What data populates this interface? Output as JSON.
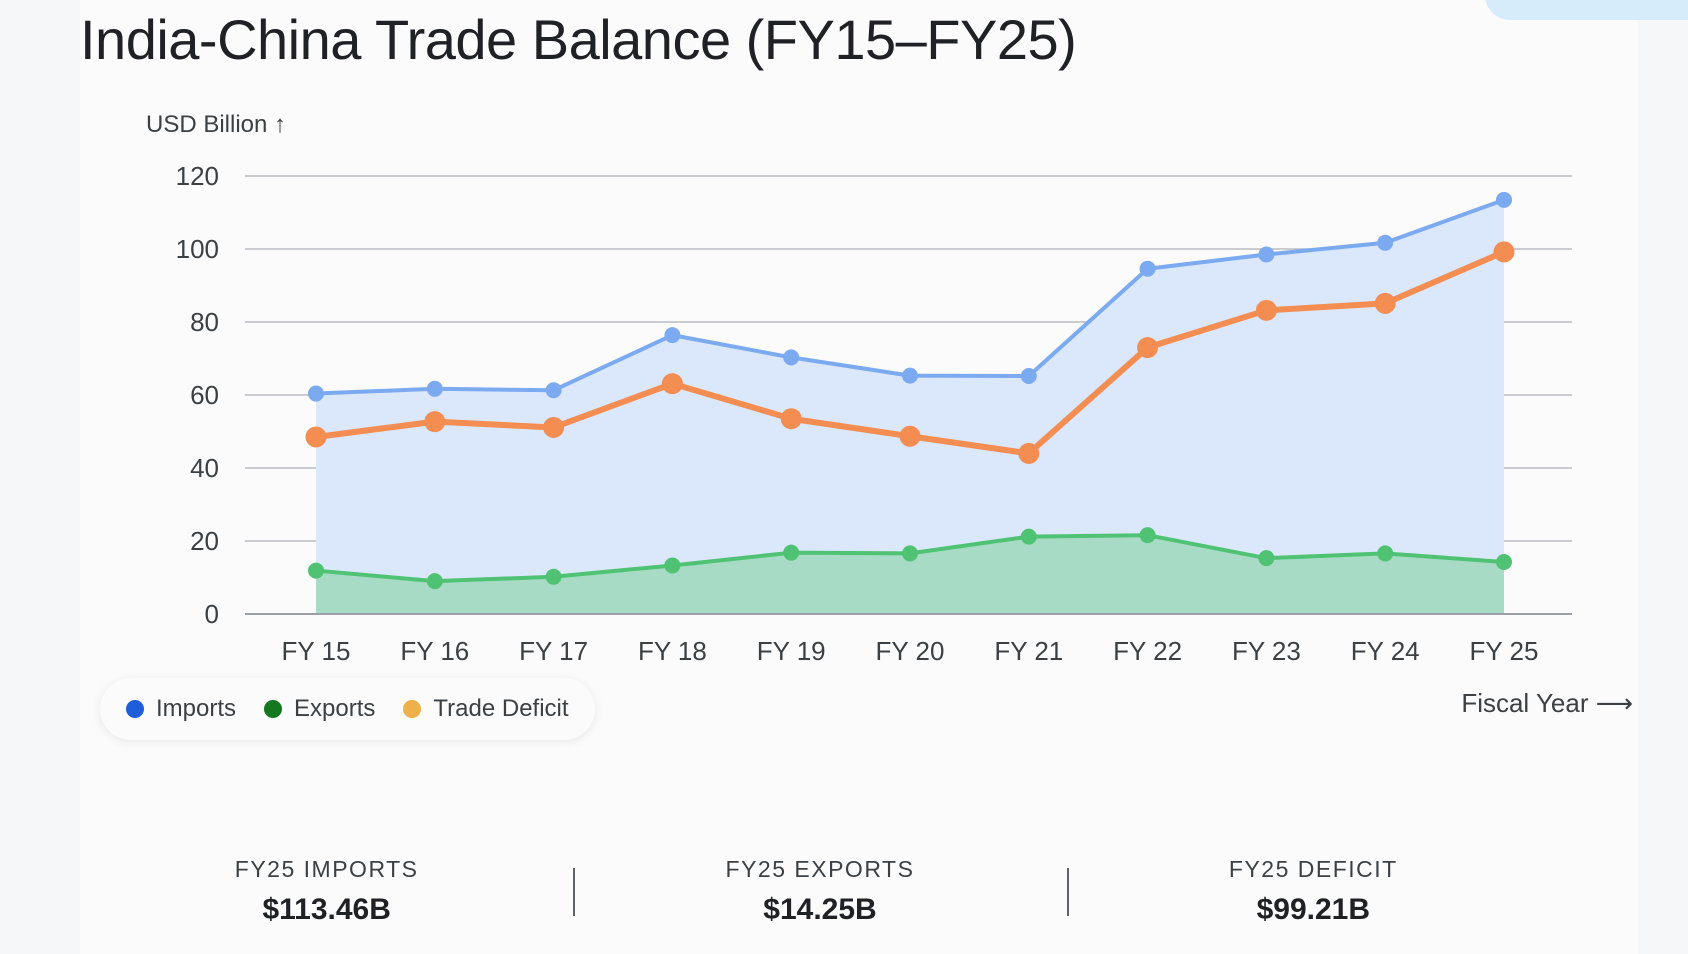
{
  "title": "India-China Trade Balance (FY15–FY25)",
  "y_unit_label": "USD Billion ↑",
  "x_caption": "Fiscal Year ⟶",
  "colors": {
    "imports_line": "#7baaf0",
    "imports_fill": "#dbe7fb",
    "exports_line": "#4fc273",
    "exports_fill": "#a8dbc6",
    "deficit_line": "#f48d52",
    "legend_imports": "#1e5ed8",
    "legend_exports": "#13781f",
    "legend_deficit": "#eeb04a"
  },
  "legend": [
    {
      "label": "Imports",
      "color": "#1e5ed8"
    },
    {
      "label": "Exports",
      "color": "#13781f"
    },
    {
      "label": "Trade Deficit",
      "color": "#eeb04a"
    }
  ],
  "stats": [
    {
      "label": "FY25 IMPORTS",
      "value": "$113.46B"
    },
    {
      "label": "FY25 EXPORTS",
      "value": "$14.25B"
    },
    {
      "label": "FY25 DEFICIT",
      "value": "$99.21B"
    }
  ],
  "chart_data": {
    "type": "line",
    "title": "India-China Trade Balance (FY15–FY25)",
    "xlabel": "Fiscal Year",
    "ylabel": "USD Billion",
    "x": [
      "FY 15",
      "FY 16",
      "FY 17",
      "FY 18",
      "FY 19",
      "FY 20",
      "FY 21",
      "FY 22",
      "FY 23",
      "FY 24",
      "FY 25"
    ],
    "yticks": [
      0,
      20,
      40,
      60,
      80,
      100,
      120
    ],
    "ylim": [
      0,
      120
    ],
    "grid": true,
    "legend_position": "bottom-left",
    "series": [
      {
        "name": "Imports",
        "values": [
          60.4,
          61.7,
          61.3,
          76.4,
          70.3,
          65.3,
          65.2,
          94.6,
          98.5,
          101.7,
          113.46
        ],
        "area": true
      },
      {
        "name": "Exports",
        "values": [
          11.9,
          9.0,
          10.2,
          13.3,
          16.8,
          16.6,
          21.2,
          21.6,
          15.3,
          16.6,
          14.25
        ],
        "area": true
      },
      {
        "name": "Trade Deficit",
        "values": [
          48.5,
          52.7,
          51.1,
          63.1,
          53.5,
          48.7,
          44.0,
          73.0,
          83.2,
          85.1,
          99.21
        ],
        "area": false
      }
    ]
  }
}
